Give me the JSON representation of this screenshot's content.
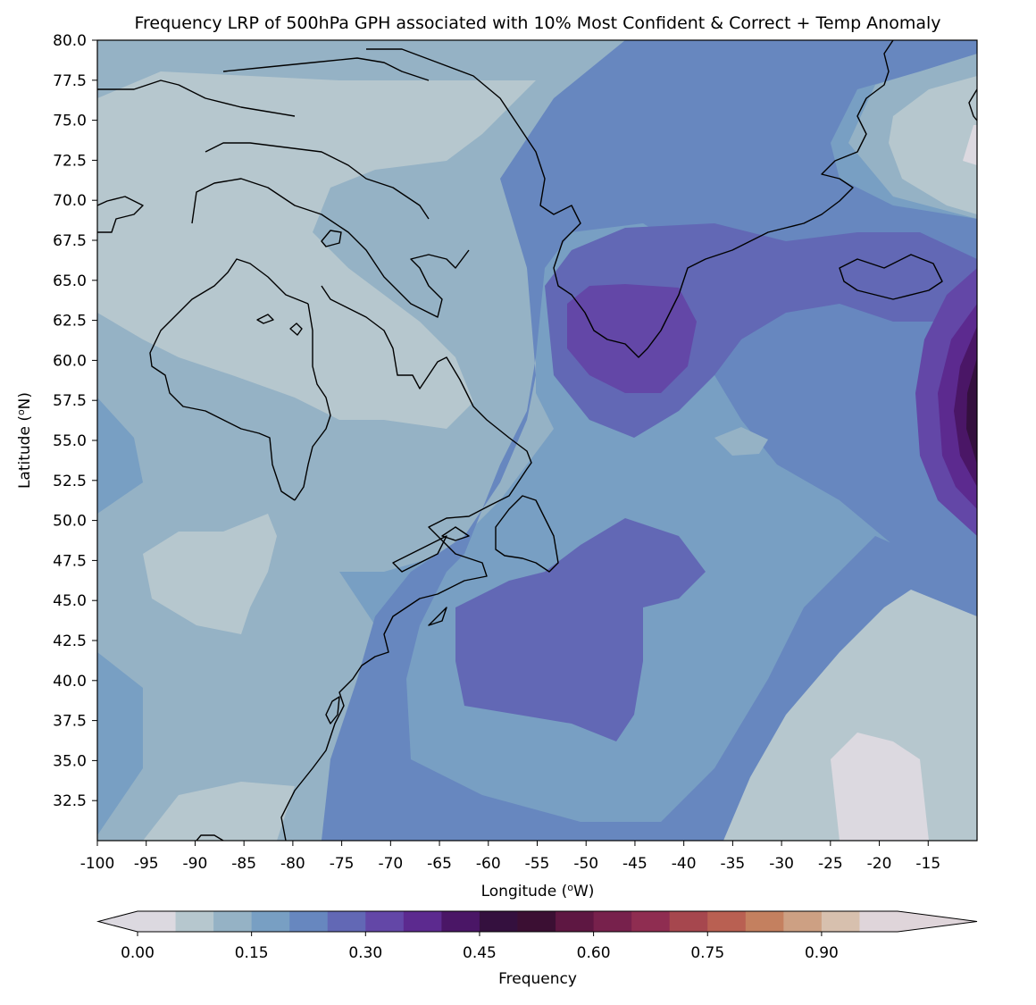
{
  "chart_data": {
    "type": "heatmap",
    "title": "Frequency LRP of 500hPa GPH associated with 10% Most Confident & Correct + Temp Anomaly",
    "xlabel": "Longitude (",
    "xlabel_sup": "o",
    "xlabel_tail": "W)",
    "ylabel": "Latitude (",
    "ylabel_sup": "o",
    "ylabel_tail": "N)",
    "xlim": [
      -100,
      -10
    ],
    "ylim": [
      30,
      80
    ],
    "x_ticks": [
      -100,
      -95,
      -90,
      -85,
      -80,
      -75,
      -70,
      -65,
      -60,
      -55,
      -50,
      -45,
      -40,
      -35,
      -30,
      -25,
      -20,
      -15
    ],
    "y_ticks": [
      32.5,
      35.0,
      37.5,
      40.0,
      42.5,
      45.0,
      47.5,
      50.0,
      52.5,
      55.0,
      57.5,
      60.0,
      62.5,
      65.0,
      67.5,
      70.0,
      72.5,
      75.0,
      77.5,
      80.0
    ],
    "colorbar": {
      "label": "Frequency",
      "ticks": [
        0.0,
        0.15,
        0.3,
        0.45,
        0.6,
        0.75,
        0.9
      ],
      "tick_labels": [
        "0.00",
        "0.15",
        "0.30",
        "0.45",
        "0.60",
        "0.75",
        "0.90"
      ],
      "levels": [
        0.0,
        0.05,
        0.1,
        0.15,
        0.2,
        0.25,
        0.3,
        0.35,
        0.4,
        0.45,
        0.5,
        0.55,
        0.6,
        0.65,
        0.7,
        0.75,
        0.8,
        0.85,
        0.9,
        0.95,
        1.0
      ],
      "extend": "both",
      "colors": [
        "#dcd9e0",
        "#b6c7ce",
        "#95b2c5",
        "#789fc3",
        "#6787bf",
        "#6268b5",
        "#6347a7",
        "#5c2a8f",
        "#4a1666",
        "#34103e",
        "#3b0f33",
        "#5e1742",
        "#77214c",
        "#8f2d51",
        "#a6474e",
        "#b96052",
        "#c4805f",
        "#cda083",
        "#d7c0ae",
        "#dfd5da"
      ]
    },
    "field_points": [
      {
        "lon": -85,
        "lat": 73,
        "value": 0.07
      },
      {
        "lon": -80,
        "lat": 60,
        "value": 0.07
      },
      {
        "lon": -62,
        "lat": 58,
        "value": 0.07
      },
      {
        "lon": -88,
        "lat": 47.5,
        "value": 0.07
      },
      {
        "lon": -98,
        "lat": 53,
        "value": 0.17
      },
      {
        "lon": -98,
        "lat": 38,
        "value": 0.17
      },
      {
        "lon": -88,
        "lat": 32,
        "value": 0.08
      },
      {
        "lon": -55,
        "lat": 75,
        "value": 0.13
      },
      {
        "lon": -47,
        "lat": 61,
        "value": 0.33
      },
      {
        "lon": -44,
        "lat": 47,
        "value": 0.27
      },
      {
        "lon": -54,
        "lat": 40,
        "value": 0.27
      },
      {
        "lon": -37,
        "lat": 55,
        "value": 0.14
      },
      {
        "lon": -22,
        "lat": 65,
        "value": 0.25
      },
      {
        "lon": -12,
        "lat": 73,
        "value": 0.08
      },
      {
        "lon": -11,
        "lat": 57,
        "value": 0.52
      },
      {
        "lon": -22,
        "lat": 42,
        "value": 0.08
      },
      {
        "lon": -20,
        "lat": 33,
        "value": 0.03
      }
    ]
  }
}
